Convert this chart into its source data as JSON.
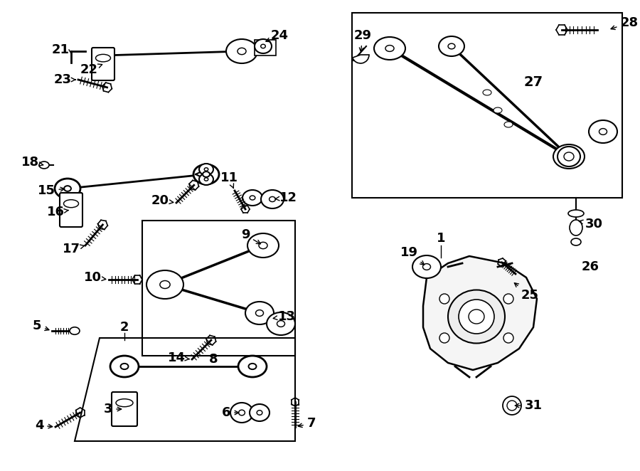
{
  "bg_color": "#ffffff",
  "line_color": "#000000",
  "text_color": "#000000",
  "fig_width": 9.0,
  "fig_height": 6.62,
  "dpi": 100
}
